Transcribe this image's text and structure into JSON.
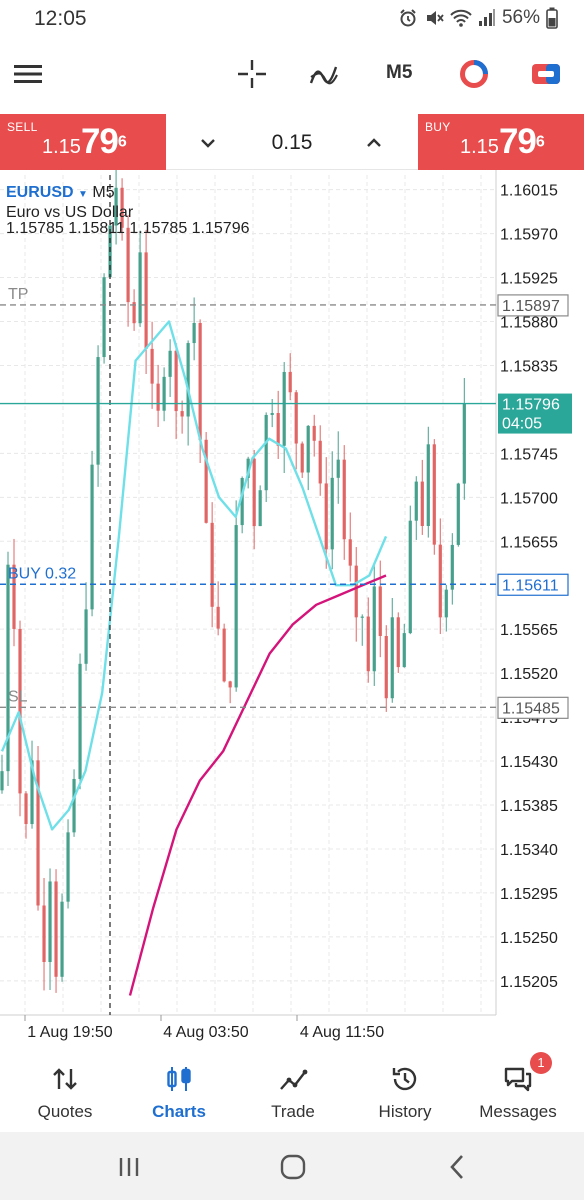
{
  "status_bar": {
    "time": "12:05",
    "battery": "56%",
    "icons": [
      "alarm-icon",
      "mute-icon",
      "wifi-icon",
      "signal-icon",
      "battery-icon"
    ]
  },
  "toolbar": {
    "items": [
      "menu-icon",
      "crosshair-icon",
      "indicators-icon",
      "timeframe",
      "chart-type-icon",
      "trade-icon"
    ],
    "timeframe": "M5"
  },
  "trade_panel": {
    "sell_label": "SELL",
    "sell_price_small": "1.15",
    "sell_price_big": "79",
    "sell_price_sup": "6",
    "buy_label": "BUY",
    "buy_price_small": "1.15",
    "buy_price_big": "79",
    "buy_price_sup": "6",
    "volume": "0.15"
  },
  "chart": {
    "symbol": "EURUSD",
    "timeframe": "M5",
    "description": "Euro vs US Dollar",
    "ohlc": "1.15785 1.15811 1.15785 1.15796",
    "colors": {
      "bull": "#46a08c",
      "bear": "#e06565",
      "ma_fast": "#6fe0e8",
      "ma_slow": "#d4147a",
      "level_buy": "#1f6fd0",
      "level_tp_sl": "#8a8a8a",
      "current_price": "#2ba79a"
    }
  },
  "chart_data": {
    "type": "candlestick",
    "title": "EURUSD M5",
    "subtitle": "Euro vs US Dollar",
    "y_ticks": [
      "1.16015",
      "1.15970",
      "1.15925",
      "1.15880",
      "1.15835",
      "1.15745",
      "1.15700",
      "1.15655",
      "1.15565",
      "1.15520",
      "1.15475",
      "1.15430",
      "1.15385",
      "1.15340",
      "1.15295",
      "1.15250",
      "1.15205"
    ],
    "ylim": [
      1.1517,
      1.1603
    ],
    "x_ticks": [
      "1 Aug 19:50",
      "4 Aug 03:50",
      "4 Aug 11:50"
    ],
    "levels": [
      {
        "label": "TP",
        "price": 1.15897,
        "text": "1.15897"
      },
      {
        "label": "BUY 0.32",
        "price": 1.15611,
        "text": "1.15611"
      },
      {
        "label": "SL",
        "price": 1.15485,
        "text": "1.15485"
      }
    ],
    "current_price": {
      "price": 1.15796,
      "text": "1.15796",
      "countdown": "04:05"
    },
    "close_path": [
      1.1542,
      1.1564,
      1.1558,
      1.154,
      1.1536,
      1.1544,
      1.1528,
      1.1524,
      1.1532,
      1.1522,
      1.1528,
      1.1534,
      1.1541,
      1.1552,
      1.156,
      1.1572,
      1.1584,
      1.1592,
      1.1598,
      1.1602,
      1.1596,
      1.159,
      1.1588,
      1.1596,
      1.1586,
      1.158,
      1.1578,
      1.1584,
      1.1586,
      1.1578,
      1.158,
      1.1586,
      1.1588,
      1.1576,
      1.1566,
      1.156,
      1.1556,
      1.155,
      1.1552,
      1.1566,
      1.1572,
      1.1574,
      1.1568,
      1.1572,
      1.1578,
      1.158,
      1.1577,
      1.1582,
      1.158,
      1.1576,
      1.1574,
      1.1578,
      1.1576,
      1.157,
      1.1566,
      1.1572,
      1.1574,
      1.1566,
      1.1562,
      1.1556,
      1.1558,
      1.1552,
      1.156,
      1.1556,
      1.1551,
      1.1556,
      1.1552,
      1.1556,
      1.1566,
      1.1572,
      1.1568,
      1.1574,
      1.1564,
      1.1558,
      1.1562,
      1.1566,
      1.1572,
      1.158
    ],
    "ma_fast": [
      1.1544,
      1.1548,
      1.1541,
      1.1536,
      1.1538,
      1.1542,
      1.155,
      1.1566,
      1.1584,
      1.1586,
      1.1588,
      1.1582,
      1.1575,
      1.157,
      1.1568,
      1.1574,
      1.1576,
      1.1575,
      1.1571,
      1.1566,
      1.1561,
      1.1561,
      1.1562,
      1.1566
    ],
    "ma_slow": [
      1.1519,
      1.1528,
      1.1536,
      1.1541,
      1.1544,
      1.1549,
      1.1554,
      1.1557,
      1.1559,
      1.156,
      1.1561,
      1.1562
    ]
  },
  "bottom_nav": {
    "items": [
      {
        "icon": "quotes-icon",
        "label": "Quotes"
      },
      {
        "icon": "charts-icon",
        "label": "Charts"
      },
      {
        "icon": "trade-icon",
        "label": "Trade"
      },
      {
        "icon": "history-icon",
        "label": "History"
      },
      {
        "icon": "messages-icon",
        "label": "Messages"
      }
    ],
    "active": "Charts",
    "messages_badge": "1"
  },
  "system_nav": [
    "recents-icon",
    "home-icon",
    "back-icon"
  ]
}
